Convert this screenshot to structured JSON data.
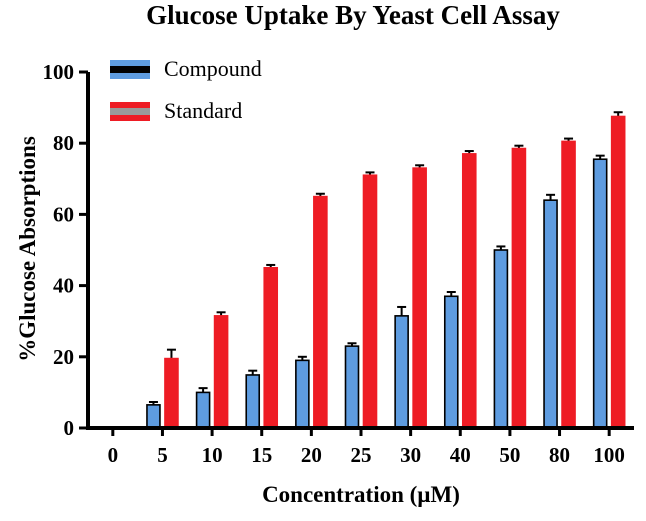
{
  "chart_data": {
    "type": "bar",
    "title": "Glucose Uptake By Yeast Cell Assay",
    "xlabel": "Concentration (µM)",
    "ylabel": "%Glucose Absorptions",
    "categories": [
      "0",
      "5",
      "10",
      "15",
      "20",
      "25",
      "30",
      "40",
      "50",
      "80",
      "100"
    ],
    "ylim": [
      0,
      100
    ],
    "yticks": [
      0,
      20,
      40,
      60,
      80,
      100
    ],
    "grid": false,
    "legend_position": "inside-top-left",
    "axis_color": "#000000",
    "error_bar_color": "#000000",
    "series": [
      {
        "name": "Compound",
        "color": "#5e9ce0",
        "border": "#000000",
        "legend_stripe": "#000000",
        "values": [
          0,
          6.5,
          10,
          14.9,
          19,
          23,
          31.5,
          37,
          50,
          64,
          75.5
        ],
        "errors": [
          0,
          0.8,
          1.2,
          1.2,
          1.0,
          0.8,
          2.5,
          1.2,
          1.0,
          1.5,
          1.0
        ]
      },
      {
        "name": "Standard",
        "color": "#ee1c24",
        "border": "#ee1c24",
        "legend_stripe": "#9a9a9a",
        "values": [
          0,
          19.5,
          31.5,
          45,
          65,
          71,
          73,
          77,
          78.5,
          80.5,
          87.5
        ],
        "errors": [
          0,
          2.5,
          1.0,
          0.8,
          0.8,
          0.8,
          0.8,
          0.8,
          0.8,
          0.8,
          1.2
        ]
      }
    ]
  }
}
